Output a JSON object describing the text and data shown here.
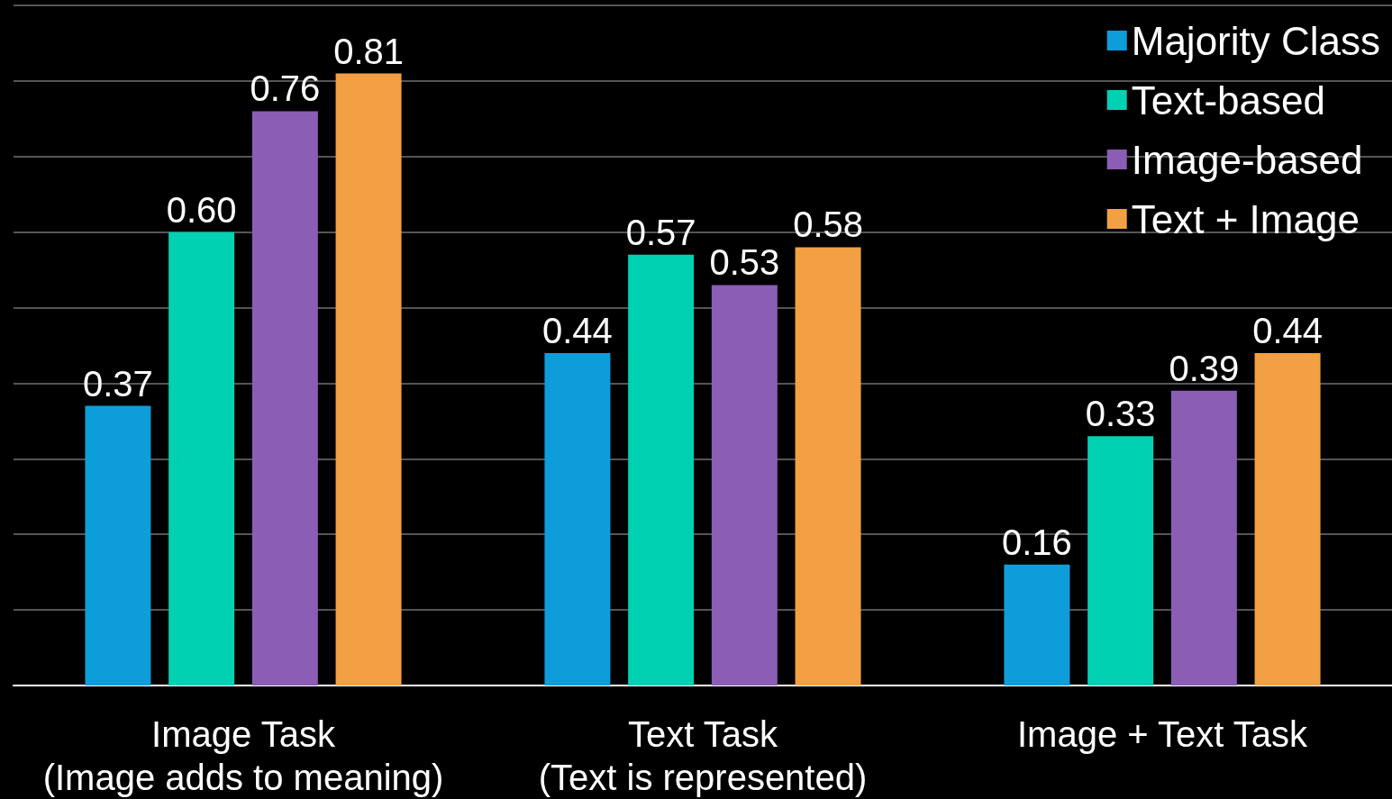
{
  "chart_data": {
    "type": "bar",
    "categories": [
      "Image Task\n(Image adds to meaning)",
      "Text Task\n(Text is represented)",
      "Image + Text Task"
    ],
    "series": [
      {
        "name": "Majority Class",
        "color": "#0e9ddb",
        "values": [
          0.37,
          0.44,
          0.16
        ]
      },
      {
        "name": "Text-based",
        "color": "#00d1b2",
        "values": [
          0.6,
          0.57,
          0.33
        ],
        "value_labels": [
          "0.60",
          "0.57",
          "0.33"
        ]
      },
      {
        "name": "Image-based",
        "color": "#8b5db5",
        "values": [
          0.76,
          0.53,
          0.39
        ]
      },
      {
        "name": "Text + Image",
        "color": "#f2a043",
        "values": [
          0.81,
          0.58,
          0.44
        ]
      }
    ],
    "ylim": [
      0,
      0.9
    ],
    "yticks": [
      {
        "value": 0,
        "label": null
      },
      {
        "value": 0.1,
        "label": null
      },
      {
        "value": 0.2,
        "label": null
      },
      {
        "value": 0.3,
        "label": null
      },
      {
        "value": 0.4,
        "label": null
      },
      {
        "value": 0.5,
        "label": null
      },
      {
        "value": 0.6,
        "label": null
      },
      {
        "value": 0.7,
        "label": null
      },
      {
        "value": 0.8,
        "label": null
      },
      {
        "value": 0.9,
        "label": null
      }
    ],
    "grid": "y",
    "legend": "top right",
    "data_labels": true,
    "tick_labels": "x"
  }
}
